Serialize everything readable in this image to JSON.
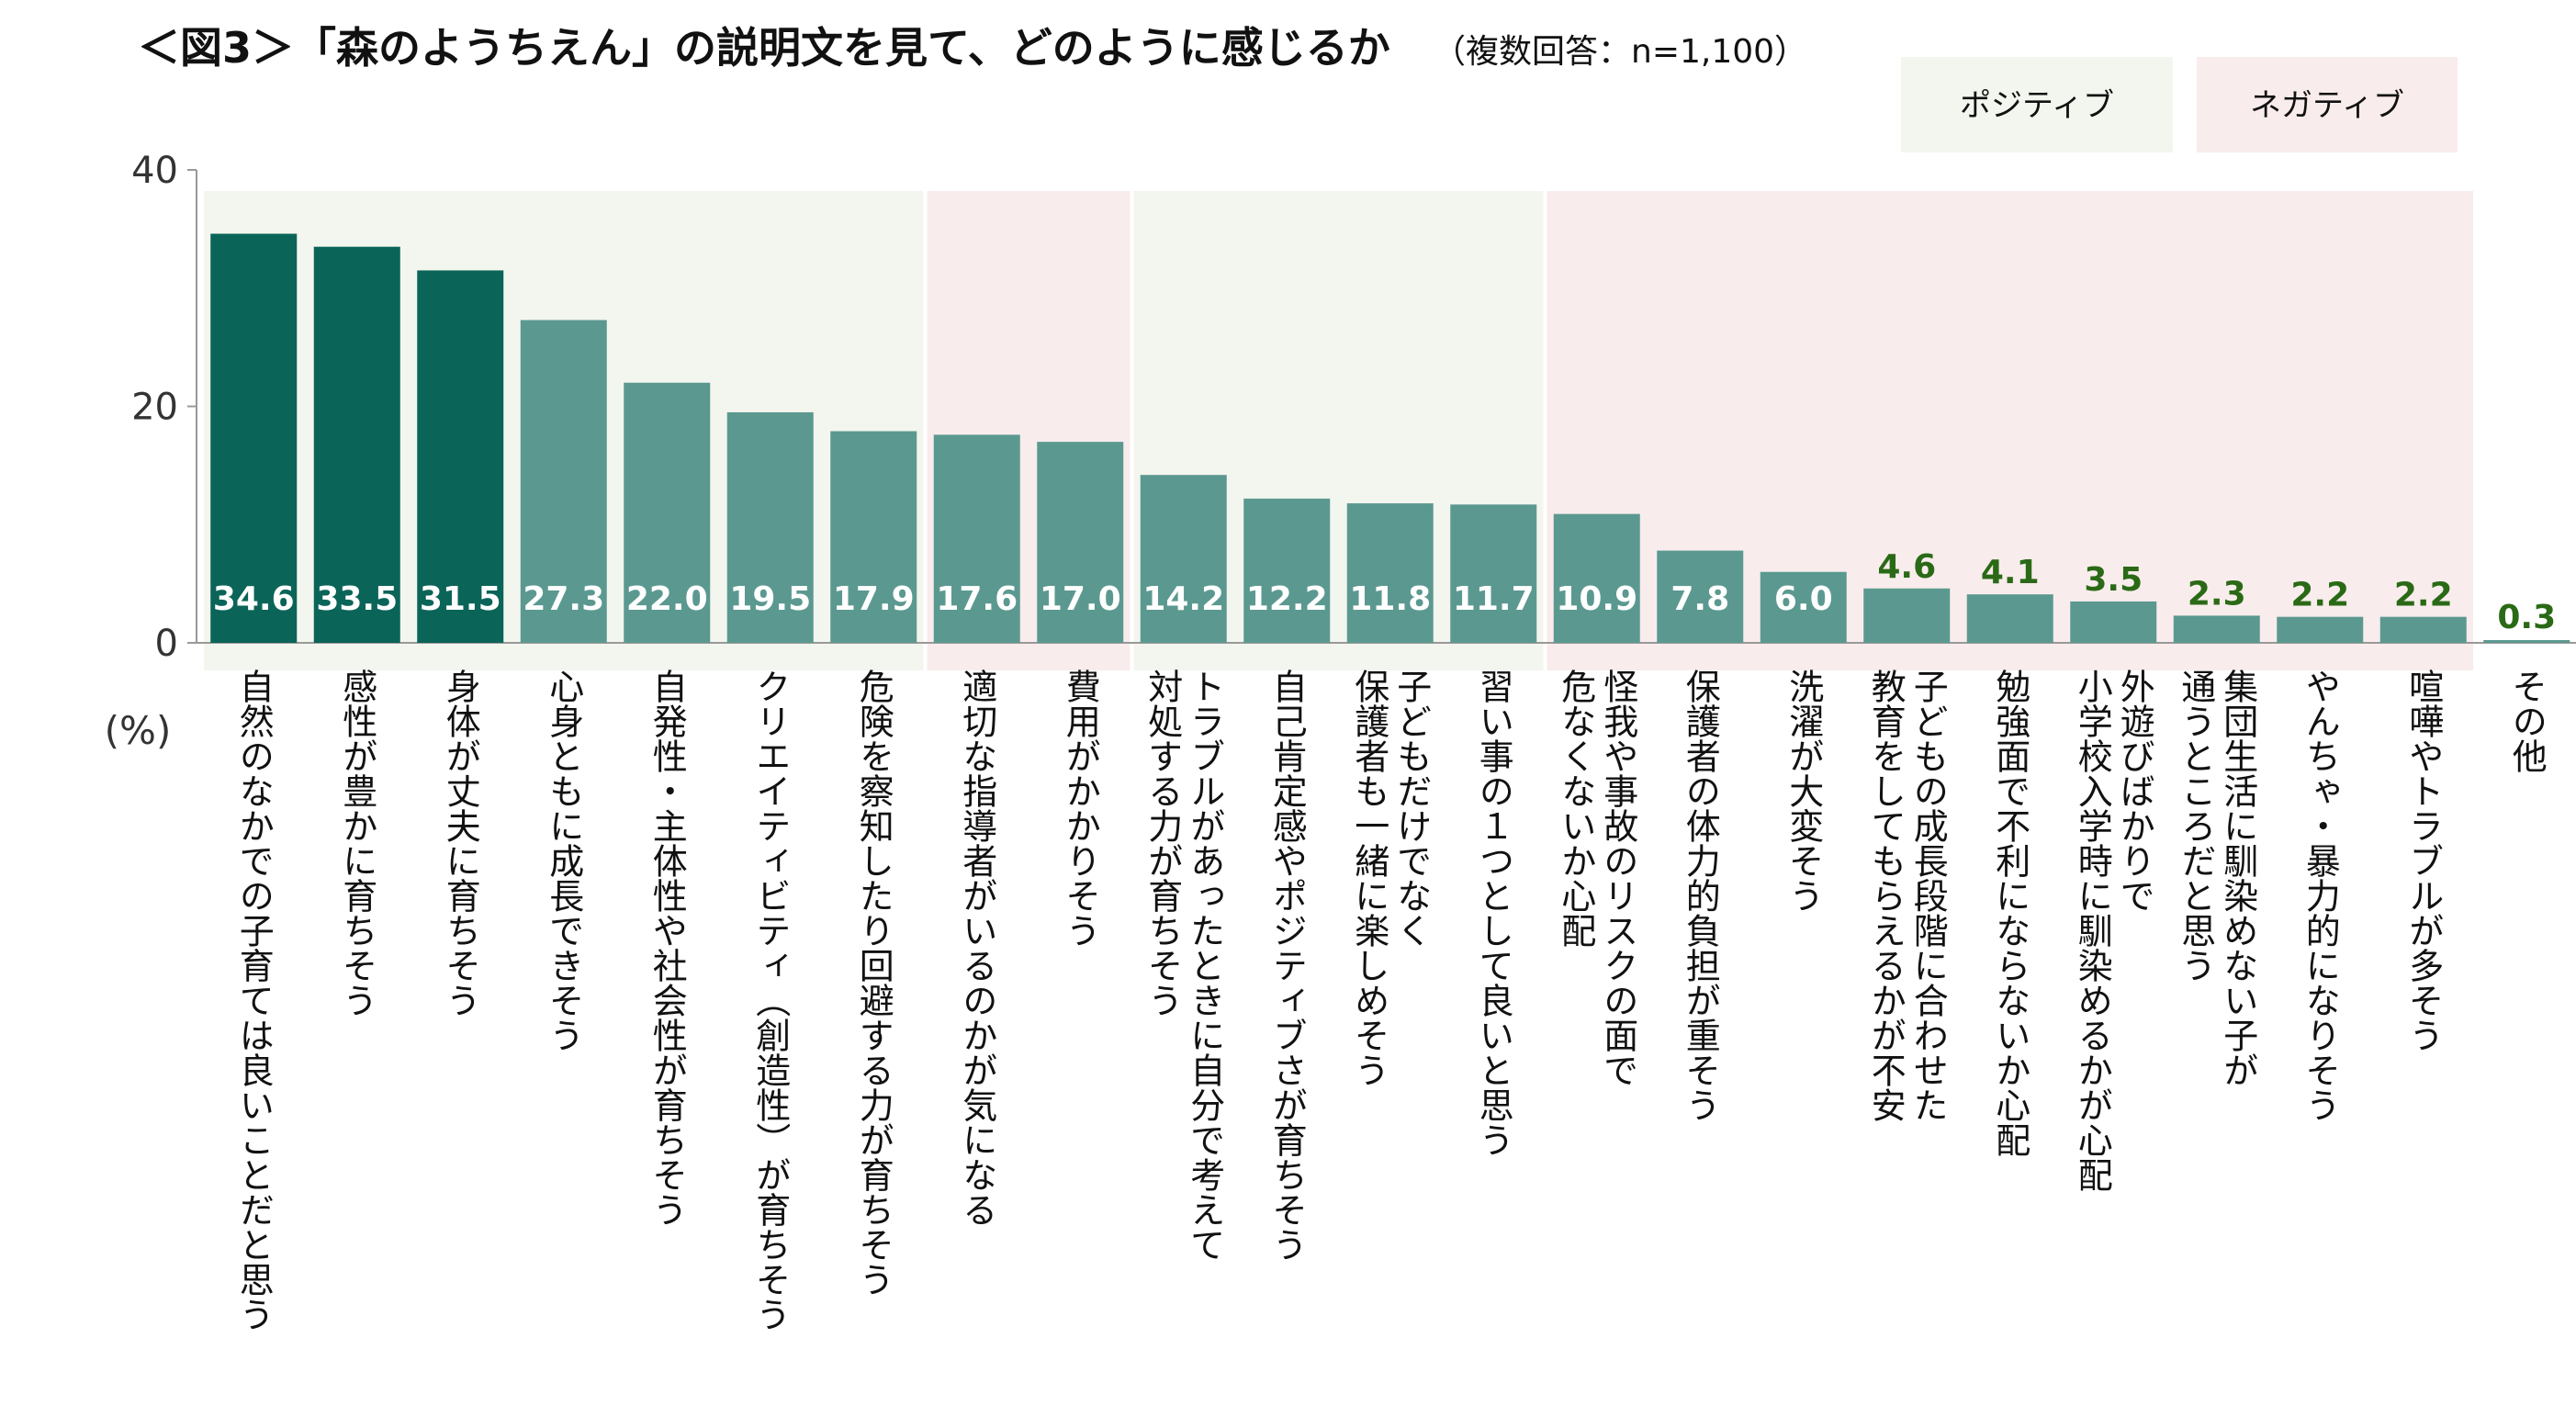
{
  "title": "＜図3＞「森のようちえん」の説明文を見て、どのように感じるか",
  "subtitle": "（複数回答：n=1,100）",
  "legend": {
    "positive": "ポジティブ",
    "negative": "ネガティブ"
  },
  "colors": {
    "positive_bg": "#f3f6ee",
    "negative_bg": "#f9ecec",
    "bar_dark": "#0b6458",
    "bar_mid": "#5b9990",
    "bar_other": "#5b9990",
    "value_outside": "#2a6a16",
    "axis": "#999999"
  },
  "chart_data": {
    "type": "bar",
    "ylabel": "(%)",
    "ylim": [
      0,
      40
    ],
    "yticks": [
      "0",
      "20",
      "40"
    ],
    "categories": [
      "自然のなかでの子育ては良いことだと思う",
      "感性が豊かに育ちそう",
      "身体が丈夫に育ちそう",
      "心身ともに成長できそう",
      "自発性・主体性や社会性が育ちそう",
      "クリエイティビティ（創造性）が育ちそう",
      "危険を察知したり回避する力が育ちそう",
      "適切な指導者がいるのかが気になる",
      "費用がかかりそう",
      "トラブルがあったときに自分で考えて対処する力が育ちそう",
      "自己肯定感やポジティブさが育ちそう",
      "子どもだけでなく保護者も一緒に楽しめそう",
      "習い事の１つとして良いと思う",
      "怪我や事故のリスクの面で危なくないか心配",
      "保護者の体力的負担が重そう",
      "洗濯が大変そう",
      "子どもの成長段階に合わせた教育をしてもらえるかが不安",
      "勉強面で不利にならないか心配",
      "外遊びばかりで小学校入学時に馴染めるかが心配",
      "集団生活に馴染めない子が通うところだと思う",
      "やんちゃ・暴力的になりそう",
      "喧嘩やトラブルが多そう",
      "その他"
    ],
    "label_lines": [
      [
        "自然のなかでの子育ては良いことだと思う"
      ],
      [
        "感性が豊かに育ちそう"
      ],
      [
        "身体が丈夫に育ちそう"
      ],
      [
        "心身ともに成長できそう"
      ],
      [
        "自発性・主体性や社会性が育ちそう"
      ],
      [
        "クリエイティビティ（創造性）が育ちそう"
      ],
      [
        "危険を察知したり回避する力が育ちそう"
      ],
      [
        "適切な指導者がいるのかが気になる"
      ],
      [
        "費用がかかりそう"
      ],
      [
        "トラブルがあったときに自分で考えて",
        "対処する力が育ちそう"
      ],
      [
        "自己肯定感やポジティブさが育ちそう"
      ],
      [
        "子どもだけでなく",
        "保護者も一緒に楽しめそう"
      ],
      [
        "習い事の１つとして良いと思う"
      ],
      [
        "怪我や事故のリスクの面で",
        "危なくないか心配"
      ],
      [
        "保護者の体力的負担が重そう"
      ],
      [
        "洗濯が大変そう"
      ],
      [
        "子どもの成長段階に合わせた",
        "教育をしてもらえるかが不安"
      ],
      [
        "勉強面で不利にならないか心配"
      ],
      [
        "外遊びばかりで",
        "小学校入学時に馴染めるかが心配"
      ],
      [
        "集団生活に馴染めない子が",
        "通うところだと思う"
      ],
      [
        "やんちゃ・暴力的になりそう"
      ],
      [
        "喧嘩やトラブルが多そう"
      ],
      [
        "その他"
      ]
    ],
    "values": [
      34.6,
      33.5,
      31.5,
      27.3,
      22.0,
      19.5,
      17.9,
      17.6,
      17.0,
      14.2,
      12.2,
      11.8,
      11.7,
      10.9,
      7.8,
      6.0,
      4.6,
      4.1,
      3.5,
      2.3,
      2.2,
      2.2,
      0.3
    ],
    "value_labels": [
      "34.6",
      "33.5",
      "31.5",
      "27.3",
      "22.0",
      "19.5",
      "17.9",
      "17.6",
      "17.0",
      "14.2",
      "12.2",
      "11.8",
      "11.7",
      "10.9",
      "7.8",
      "6.0",
      "4.6",
      "4.1",
      "3.5",
      "2.3",
      "2.2",
      "2.2",
      "0.3"
    ],
    "sentiment": [
      "positive",
      "positive",
      "positive",
      "positive",
      "positive",
      "positive",
      "positive",
      "negative",
      "negative",
      "positive",
      "positive",
      "positive",
      "positive",
      "negative",
      "negative",
      "negative",
      "negative",
      "negative",
      "negative",
      "negative",
      "negative",
      "negative",
      "none"
    ],
    "highlight_top": 3,
    "grid": false,
    "legend_position": "top-right"
  }
}
